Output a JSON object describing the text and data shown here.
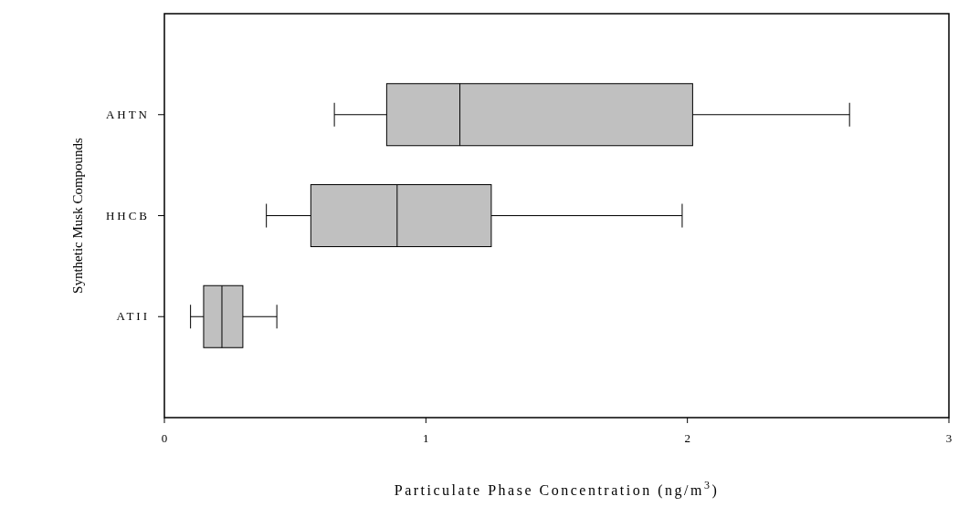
{
  "chart_data": {
    "type": "box",
    "orientation": "horizontal",
    "categories": [
      "AHTN",
      "HHCB",
      "ATII"
    ],
    "color": "#c0c0c0",
    "boxes": [
      {
        "low": 0.65,
        "q1": 0.85,
        "median": 1.13,
        "q3": 2.02,
        "high": 2.62
      },
      {
        "low": 0.39,
        "q1": 0.56,
        "median": 0.89,
        "q3": 1.25,
        "high": 1.98
      },
      {
        "low": 0.1,
        "q1": 0.15,
        "median": 0.22,
        "q3": 0.3,
        "high": 0.43
      }
    ],
    "xlim": [
      0,
      3
    ],
    "xticks": [
      0,
      1,
      2,
      3
    ],
    "xlabel": "Particulate Phase Concentration (ng/m$^{3}$)",
    "ylabel": "Synthetic Musk Compounds",
    "grid": false
  }
}
